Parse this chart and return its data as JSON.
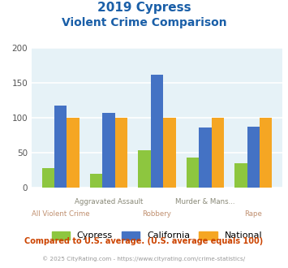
{
  "title_line1": "2019 Cypress",
  "title_line2": "Violent Crime Comparison",
  "categories": [
    "All Violent Crime",
    "Aggravated Assault",
    "Robbery",
    "Murder & Mans...",
    "Rape"
  ],
  "cypress": [
    28,
    20,
    54,
    43,
    35
  ],
  "california": [
    118,
    107,
    162,
    86,
    87
  ],
  "national": [
    100,
    100,
    100,
    100,
    100
  ],
  "colors": {
    "cypress": "#8dc63f",
    "california": "#4472c4",
    "national": "#f5a623"
  },
  "ylim": [
    0,
    200
  ],
  "yticks": [
    0,
    50,
    100,
    150,
    200
  ],
  "bg_color": "#e6f2f7",
  "title_color": "#1a5fa8",
  "xlabel_top_color": "#888877",
  "xlabel_bot_color": "#c09070",
  "footer_text": "Compared to U.S. average. (U.S. average equals 100)",
  "copyright_text": "© 2025 CityRating.com - https://www.cityrating.com/crime-statistics/",
  "footer_color": "#cc4400",
  "copyright_color": "#999999",
  "top_row_labels": [
    "",
    "Aggravated Assault",
    "",
    "Murder & Mans...",
    ""
  ],
  "bot_row_labels": [
    "All Violent Crime",
    "",
    "Robbery",
    "",
    "Rape"
  ]
}
